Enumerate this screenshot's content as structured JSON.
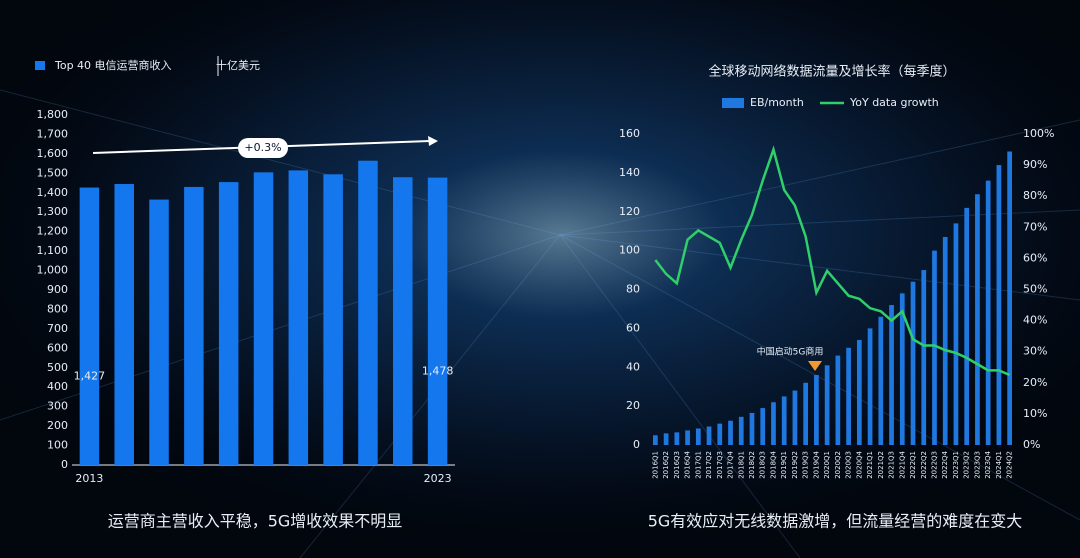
{
  "chart_data": [
    {
      "type": "bar",
      "caption": "运营商主营收入平稳，5G增收效果不明显",
      "unit": "十亿美元",
      "annotation": "+0.3%",
      "categories": [
        "2013",
        null,
        null,
        null,
        null,
        null,
        null,
        null,
        null,
        null,
        "2023"
      ],
      "series": [
        {
          "name": "Top 40 电信运营商收入",
          "color": "#1577ee",
          "values": [
            1427,
            1445,
            1365,
            1430,
            1455,
            1505,
            1515,
            1495,
            1565,
            1480,
            1478
          ],
          "value_labels": [
            "1,427",
            null,
            null,
            null,
            null,
            null,
            null,
            null,
            null,
            null,
            "1,478"
          ]
        }
      ],
      "ylim": [
        0,
        1800
      ],
      "yticks": [
        0,
        100,
        200,
        300,
        400,
        500,
        600,
        700,
        800,
        900,
        {
          "value": 1000,
          "label": "1,000"
        },
        {
          "value": 1100,
          "label": "1,100"
        },
        {
          "value": 1200,
          "label": "1,200"
        },
        {
          "value": 1300,
          "label": "1,300"
        },
        {
          "value": 1400,
          "label": "1,400"
        },
        {
          "value": 1500,
          "label": "1,500"
        },
        {
          "value": 1600,
          "label": "1,600"
        },
        {
          "value": 1700,
          "label": "1,700"
        },
        {
          "value": 1800,
          "label": "1,800"
        }
      ],
      "grid": false
    },
    {
      "type": "combo",
      "title": "全球移动网络数据流量及增长率（每季度）",
      "caption": "5G有效应对无线数据激增，但流量经营的难度在变大",
      "annotation": "中国启动5G商用",
      "categories": [
        "2016Q1",
        "2016Q2",
        "2016Q3",
        "2016Q4",
        "2017Q1",
        "2017Q2",
        "2017Q3",
        "2017Q4",
        "2018Q1",
        "2018Q2",
        "2018Q3",
        "2018Q4",
        "2019Q1",
        "2019Q2",
        "2019Q3",
        "2019Q4",
        "2020Q1",
        "2020Q2",
        "2020Q3",
        "2020Q4",
        "2021Q1",
        "2021Q2",
        "2021Q3",
        "2021Q4",
        "2022Q1",
        "2022Q2",
        "2022Q3",
        "2022Q4",
        "2023Q1",
        "2023Q2",
        "2023Q3",
        "2023Q4",
        "2024Q1",
        "2024Q2"
      ],
      "series": [
        {
          "name": "EB/month",
          "color": "#1f78e0",
          "kind": "bar",
          "values": [
            5,
            6,
            6.5,
            7.5,
            8.5,
            9.5,
            11,
            12.5,
            14.5,
            16.5,
            19,
            22,
            25,
            28,
            32,
            36,
            41,
            46,
            50,
            54,
            60,
            66,
            72,
            78,
            84,
            90,
            100,
            107,
            114,
            122,
            129,
            136,
            144,
            151
          ]
        },
        {
          "name": "YoY data growth",
          "color": "#2fcf6a",
          "kind": "line",
          "axis": "y2",
          "values": [
            59.5,
            55,
            52,
            66,
            69,
            67,
            65,
            57,
            66,
            74,
            85,
            95,
            82,
            77,
            67,
            49,
            56,
            52,
            48,
            47,
            44,
            43,
            40,
            43,
            34,
            32,
            32,
            30.5,
            29.6,
            28,
            26,
            24,
            24,
            22.5
          ]
        }
      ],
      "ylim": [
        0,
        160
      ],
      "yticks": [
        0,
        20,
        40,
        60,
        80,
        100,
        120,
        140,
        160
      ],
      "y2lim": [
        0,
        100
      ],
      "y2ticks": [
        {
          "value": 0,
          "label": "0%"
        },
        {
          "value": 10,
          "label": "10%"
        },
        {
          "value": 20,
          "label": "20%"
        },
        {
          "value": 30,
          "label": "30%"
        },
        {
          "value": 40,
          "label": "40%"
        },
        {
          "value": 50,
          "label": "50%"
        },
        {
          "value": 60,
          "label": "60%"
        },
        {
          "value": 70,
          "label": "70%"
        },
        {
          "value": 80,
          "label": "80%"
        },
        {
          "value": 90,
          "label": "90%"
        },
        {
          "value": 100,
          "label": "100%"
        }
      ],
      "grid": false
    }
  ]
}
